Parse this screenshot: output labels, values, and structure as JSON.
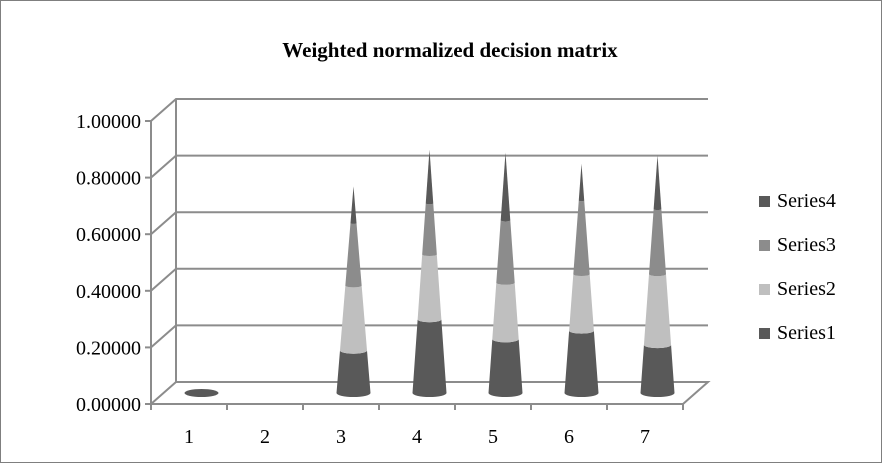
{
  "chart_data": {
    "type": "bar",
    "subtype": "3d-stacked-cone",
    "title": "Weighted normalized decision matrix",
    "xlabel": "",
    "ylabel": "",
    "categories": [
      "1",
      "2",
      "3",
      "4",
      "5",
      "6",
      "7"
    ],
    "ylim": [
      0,
      1
    ],
    "y_ticks": [
      "0.00000",
      "0.20000",
      "0.40000",
      "0.60000",
      "0.80000",
      "1.00000"
    ],
    "grid": true,
    "legend_position": "right",
    "series": [
      {
        "name": "Series1",
        "color": "#595959",
        "values": [
          0.01,
          0.0,
          0.15,
          0.26,
          0.19,
          0.22,
          0.17
        ]
      },
      {
        "name": "Series2",
        "color": "#bfbfbf",
        "values": [
          0.0,
          0.0,
          0.23,
          0.23,
          0.2,
          0.2,
          0.25
        ]
      },
      {
        "name": "Series3",
        "color": "#8c8c8c",
        "values": [
          0.0,
          0.0,
          0.22,
          0.18,
          0.22,
          0.26,
          0.23
        ]
      },
      {
        "name": "Series4",
        "color": "#595959",
        "values": [
          0.0,
          0.0,
          0.13,
          0.19,
          0.24,
          0.13,
          0.19
        ]
      }
    ],
    "legend_order": [
      "Series4",
      "Series3",
      "Series2",
      "Series1"
    ]
  }
}
